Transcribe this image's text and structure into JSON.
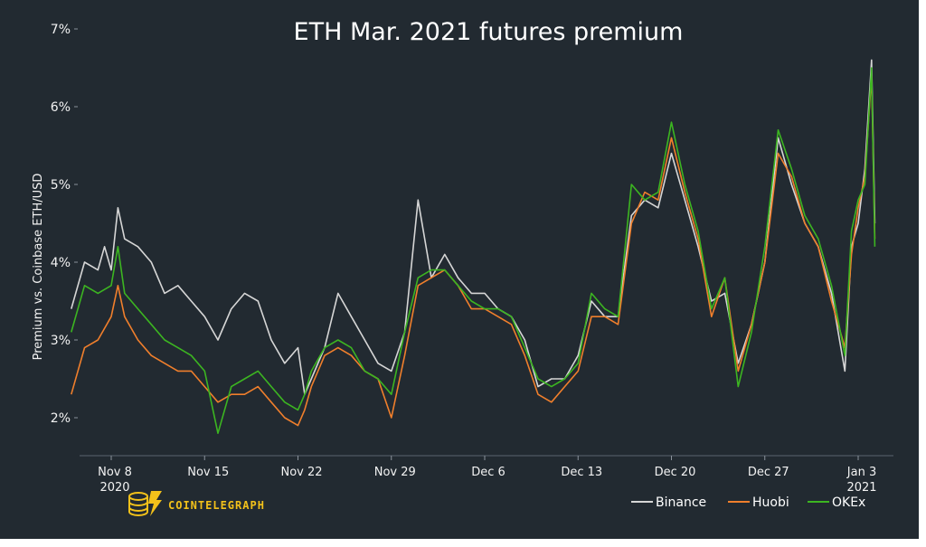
{
  "chart_data": {
    "type": "line",
    "title": "ETH Mar. 2021 futures premium",
    "ylabel": "Premium vs. Coinbase ETH/USD",
    "xlabel": "",
    "ylim": [
      1.5,
      7.0
    ],
    "y_ticks": [
      "2%",
      "3%",
      "4%",
      "5%",
      "6%",
      "7%"
    ],
    "y_tick_values": [
      2,
      3,
      4,
      5,
      6,
      7
    ],
    "x_range": [
      "2020-11-05",
      "2021-01-04"
    ],
    "x_ticks": [
      {
        "date": "2020-11-08",
        "label": "Nov 8",
        "sublabel": "2020"
      },
      {
        "date": "2020-11-15",
        "label": "Nov 15",
        "sublabel": ""
      },
      {
        "date": "2020-11-22",
        "label": "Nov 22",
        "sublabel": ""
      },
      {
        "date": "2020-11-29",
        "label": "Nov 29",
        "sublabel": ""
      },
      {
        "date": "2020-12-06",
        "label": "Dec 6",
        "sublabel": ""
      },
      {
        "date": "2020-12-13",
        "label": "Dec 13",
        "sublabel": ""
      },
      {
        "date": "2020-12-20",
        "label": "Dec 20",
        "sublabel": ""
      },
      {
        "date": "2020-12-27",
        "label": "Dec 27",
        "sublabel": ""
      },
      {
        "date": "2021-01-03",
        "label": "Jan 3",
        "sublabel": "2021"
      }
    ],
    "legend_position": "bottom-right",
    "series": [
      {
        "name": "Binance",
        "color": "#d6d6d6",
        "points": [
          [
            "2020-11-05",
            3.4
          ],
          [
            "2020-11-06",
            4.0
          ],
          [
            "2020-11-07",
            3.9
          ],
          [
            "2020-11-07T12",
            4.2
          ],
          [
            "2020-11-08",
            3.9
          ],
          [
            "2020-11-08T12",
            4.7
          ],
          [
            "2020-11-09",
            4.3
          ],
          [
            "2020-11-10",
            4.2
          ],
          [
            "2020-11-11",
            4.0
          ],
          [
            "2020-11-12",
            3.6
          ],
          [
            "2020-11-13",
            3.7
          ],
          [
            "2020-11-14",
            3.5
          ],
          [
            "2020-11-15",
            3.3
          ],
          [
            "2020-11-16",
            3.0
          ],
          [
            "2020-11-17",
            3.4
          ],
          [
            "2020-11-18",
            3.6
          ],
          [
            "2020-11-19",
            3.5
          ],
          [
            "2020-11-20",
            3.0
          ],
          [
            "2020-11-21",
            2.7
          ],
          [
            "2020-11-22",
            2.9
          ],
          [
            "2020-11-22T12",
            2.3
          ],
          [
            "2020-11-23",
            2.5
          ],
          [
            "2020-11-24",
            2.9
          ],
          [
            "2020-11-25",
            3.6
          ],
          [
            "2020-11-26",
            3.3
          ],
          [
            "2020-11-27",
            3.0
          ],
          [
            "2020-11-28",
            2.7
          ],
          [
            "2020-11-29",
            2.6
          ],
          [
            "2020-11-30",
            3.1
          ],
          [
            "2020-12-01",
            4.8
          ],
          [
            "2020-12-02",
            3.8
          ],
          [
            "2020-12-03",
            4.1
          ],
          [
            "2020-12-04",
            3.8
          ],
          [
            "2020-12-05",
            3.6
          ],
          [
            "2020-12-06",
            3.6
          ],
          [
            "2020-12-07",
            3.4
          ],
          [
            "2020-12-08",
            3.3
          ],
          [
            "2020-12-09",
            3.0
          ],
          [
            "2020-12-10",
            2.4
          ],
          [
            "2020-12-11",
            2.5
          ],
          [
            "2020-12-12",
            2.5
          ],
          [
            "2020-12-13",
            2.8
          ],
          [
            "2020-12-14",
            3.5
          ],
          [
            "2020-12-15",
            3.3
          ],
          [
            "2020-12-16",
            3.3
          ],
          [
            "2020-12-17",
            4.6
          ],
          [
            "2020-12-18",
            4.8
          ],
          [
            "2020-12-19",
            4.7
          ],
          [
            "2020-12-20",
            5.4
          ],
          [
            "2020-12-21",
            4.8
          ],
          [
            "2020-12-22",
            4.2
          ],
          [
            "2020-12-23",
            3.5
          ],
          [
            "2020-12-24",
            3.6
          ],
          [
            "2020-12-25",
            2.7
          ],
          [
            "2020-12-26",
            3.2
          ],
          [
            "2020-12-27",
            4.0
          ],
          [
            "2020-12-28",
            5.6
          ],
          [
            "2020-12-29",
            5.0
          ],
          [
            "2020-12-30",
            4.5
          ],
          [
            "2020-12-31",
            4.2
          ],
          [
            "2021-01-01",
            3.6
          ],
          [
            "2021-01-02",
            2.6
          ],
          [
            "2021-01-02T12",
            4.2
          ],
          [
            "2021-01-03",
            4.5
          ],
          [
            "2021-01-03T12",
            5.2
          ],
          [
            "2021-01-04",
            6.6
          ],
          [
            "2021-01-04T06",
            4.5
          ]
        ]
      },
      {
        "name": "Huobi",
        "color": "#f07f2c",
        "points": [
          [
            "2020-11-05",
            2.3
          ],
          [
            "2020-11-06",
            2.9
          ],
          [
            "2020-11-07",
            3.0
          ],
          [
            "2020-11-08",
            3.3
          ],
          [
            "2020-11-08T12",
            3.7
          ],
          [
            "2020-11-09",
            3.3
          ],
          [
            "2020-11-10",
            3.0
          ],
          [
            "2020-11-11",
            2.8
          ],
          [
            "2020-11-12",
            2.7
          ],
          [
            "2020-11-13",
            2.6
          ],
          [
            "2020-11-14",
            2.6
          ],
          [
            "2020-11-15",
            2.4
          ],
          [
            "2020-11-16",
            2.2
          ],
          [
            "2020-11-17",
            2.3
          ],
          [
            "2020-11-18",
            2.3
          ],
          [
            "2020-11-19",
            2.4
          ],
          [
            "2020-11-20",
            2.2
          ],
          [
            "2020-11-21",
            2.0
          ],
          [
            "2020-11-22",
            1.9
          ],
          [
            "2020-11-22T12",
            2.1
          ],
          [
            "2020-11-23",
            2.4
          ],
          [
            "2020-11-24",
            2.8
          ],
          [
            "2020-11-25",
            2.9
          ],
          [
            "2020-11-26",
            2.8
          ],
          [
            "2020-11-27",
            2.6
          ],
          [
            "2020-11-28",
            2.5
          ],
          [
            "2020-11-29",
            2.0
          ],
          [
            "2020-11-30",
            2.8
          ],
          [
            "2020-12-01",
            3.7
          ],
          [
            "2020-12-02",
            3.8
          ],
          [
            "2020-12-03",
            3.9
          ],
          [
            "2020-12-04",
            3.7
          ],
          [
            "2020-12-05",
            3.4
          ],
          [
            "2020-12-06",
            3.4
          ],
          [
            "2020-12-07",
            3.3
          ],
          [
            "2020-12-08",
            3.2
          ],
          [
            "2020-12-09",
            2.8
          ],
          [
            "2020-12-10",
            2.3
          ],
          [
            "2020-12-11",
            2.2
          ],
          [
            "2020-12-12",
            2.4
          ],
          [
            "2020-12-13",
            2.6
          ],
          [
            "2020-12-14",
            3.3
          ],
          [
            "2020-12-15",
            3.3
          ],
          [
            "2020-12-16",
            3.2
          ],
          [
            "2020-12-17",
            4.5
          ],
          [
            "2020-12-18",
            4.9
          ],
          [
            "2020-12-19",
            4.8
          ],
          [
            "2020-12-20",
            5.6
          ],
          [
            "2020-12-21",
            4.9
          ],
          [
            "2020-12-22",
            4.3
          ],
          [
            "2020-12-23",
            3.3
          ],
          [
            "2020-12-24",
            3.8
          ],
          [
            "2020-12-25",
            2.6
          ],
          [
            "2020-12-26",
            3.2
          ],
          [
            "2020-12-27",
            4.0
          ],
          [
            "2020-12-28",
            5.4
          ],
          [
            "2020-12-29",
            5.1
          ],
          [
            "2020-12-30",
            4.5
          ],
          [
            "2020-12-31",
            4.2
          ],
          [
            "2021-01-01",
            3.5
          ],
          [
            "2021-01-02",
            2.9
          ],
          [
            "2021-01-02T12",
            4.1
          ],
          [
            "2021-01-03",
            4.7
          ],
          [
            "2021-01-03T12",
            5.1
          ],
          [
            "2021-01-04",
            6.4
          ],
          [
            "2021-01-04T06",
            4.3
          ]
        ]
      },
      {
        "name": "OKEx",
        "color": "#3cb521",
        "points": [
          [
            "2020-11-05",
            3.1
          ],
          [
            "2020-11-06",
            3.7
          ],
          [
            "2020-11-07",
            3.6
          ],
          [
            "2020-11-08",
            3.7
          ],
          [
            "2020-11-08T12",
            4.2
          ],
          [
            "2020-11-09",
            3.6
          ],
          [
            "2020-11-10",
            3.4
          ],
          [
            "2020-11-11",
            3.2
          ],
          [
            "2020-11-12",
            3.0
          ],
          [
            "2020-11-13",
            2.9
          ],
          [
            "2020-11-14",
            2.8
          ],
          [
            "2020-11-15",
            2.6
          ],
          [
            "2020-11-16",
            1.8
          ],
          [
            "2020-11-17",
            2.4
          ],
          [
            "2020-11-18",
            2.5
          ],
          [
            "2020-11-19",
            2.6
          ],
          [
            "2020-11-20",
            2.4
          ],
          [
            "2020-11-21",
            2.2
          ],
          [
            "2020-11-22",
            2.1
          ],
          [
            "2020-11-22T12",
            2.3
          ],
          [
            "2020-11-23",
            2.6
          ],
          [
            "2020-11-24",
            2.9
          ],
          [
            "2020-11-25",
            3.0
          ],
          [
            "2020-11-26",
            2.9
          ],
          [
            "2020-11-27",
            2.6
          ],
          [
            "2020-11-28",
            2.5
          ],
          [
            "2020-11-29",
            2.3
          ],
          [
            "2020-11-30",
            3.1
          ],
          [
            "2020-12-01",
            3.8
          ],
          [
            "2020-12-02",
            3.9
          ],
          [
            "2020-12-03",
            3.9
          ],
          [
            "2020-12-04",
            3.7
          ],
          [
            "2020-12-05",
            3.5
          ],
          [
            "2020-12-06",
            3.4
          ],
          [
            "2020-12-07",
            3.4
          ],
          [
            "2020-12-08",
            3.3
          ],
          [
            "2020-12-09",
            2.9
          ],
          [
            "2020-12-10",
            2.5
          ],
          [
            "2020-12-11",
            2.4
          ],
          [
            "2020-12-12",
            2.5
          ],
          [
            "2020-12-13",
            2.7
          ],
          [
            "2020-12-14",
            3.6
          ],
          [
            "2020-12-15",
            3.4
          ],
          [
            "2020-12-16",
            3.3
          ],
          [
            "2020-12-17",
            5.0
          ],
          [
            "2020-12-18",
            4.8
          ],
          [
            "2020-12-19",
            4.9
          ],
          [
            "2020-12-20",
            5.8
          ],
          [
            "2020-12-21",
            5.0
          ],
          [
            "2020-12-22",
            4.4
          ],
          [
            "2020-12-23",
            3.4
          ],
          [
            "2020-12-24",
            3.8
          ],
          [
            "2020-12-25",
            2.4
          ],
          [
            "2020-12-26",
            3.1
          ],
          [
            "2020-12-27",
            4.2
          ],
          [
            "2020-12-28",
            5.7
          ],
          [
            "2020-12-29",
            5.2
          ],
          [
            "2020-12-30",
            4.6
          ],
          [
            "2020-12-31",
            4.3
          ],
          [
            "2021-01-01",
            3.7
          ],
          [
            "2021-01-02",
            2.8
          ],
          [
            "2021-01-02T12",
            4.4
          ],
          [
            "2021-01-03",
            4.8
          ],
          [
            "2021-01-03T12",
            5.0
          ],
          [
            "2021-01-04",
            6.5
          ],
          [
            "2021-01-04T06",
            4.2
          ]
        ]
      }
    ]
  },
  "brand": {
    "name": "COINTELEGRAPH",
    "accent_color": "#f3c11a",
    "logo_icon": "coin-stack-lightning-icon"
  },
  "colors": {
    "background": "#222a31",
    "text": "#ffffff"
  }
}
